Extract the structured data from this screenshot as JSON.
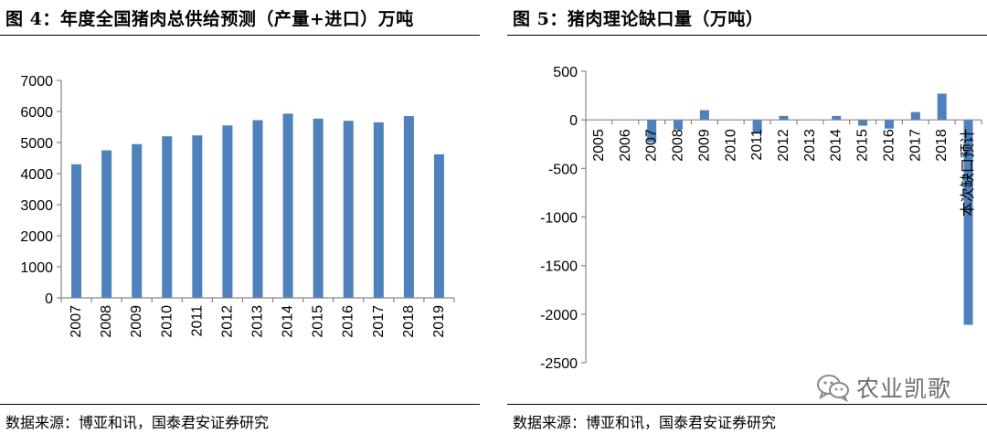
{
  "left_panel": {
    "title": "图 4：年度全国猪肉总供给预测（产量+进口）万吨",
    "source": "数据来源：博亚和讯，国泰君安证券研究"
  },
  "right_panel": {
    "title": "图 5：猪肉理论缺口量（万吨）",
    "source": "数据来源：博亚和讯，国泰君安证券研究"
  },
  "watermark": {
    "text": "农业凯歌",
    "icon": "wechat-icon"
  },
  "colors": {
    "bar": "#4f81bd",
    "axis": "#868686",
    "text": "#000000"
  },
  "chart_data": [
    {
      "type": "bar",
      "title": "图 4：年度全国猪肉总供给预测（产量+进口）万吨",
      "categories": [
        "2007",
        "2008",
        "2009",
        "2010",
        "2011",
        "2012",
        "2013",
        "2014",
        "2015",
        "2016",
        "2017",
        "2018",
        "2019"
      ],
      "values": [
        4300,
        4750,
        4950,
        5200,
        5230,
        5550,
        5720,
        5930,
        5770,
        5700,
        5650,
        5850,
        4620
      ],
      "ylim": [
        0,
        7000
      ],
      "yticks": [
        0,
        1000,
        2000,
        3000,
        4000,
        5000,
        6000,
        7000
      ],
      "grid": false,
      "legend": "none",
      "tick_label_rotation": -90
    },
    {
      "type": "bar",
      "title": "图 5：猪肉理论缺口量（万吨）",
      "categories": [
        "2005",
        "2006",
        "2007",
        "2008",
        "2009",
        "2010",
        "2011",
        "2012",
        "2013",
        "2014",
        "2015",
        "2016",
        "2017",
        "2018",
        "本次缺口预计"
      ],
      "values": [
        0,
        0,
        -230,
        -100,
        100,
        0,
        -140,
        40,
        0,
        40,
        -60,
        -90,
        80,
        270,
        -2110
      ],
      "ylim": [
        -2500,
        500
      ],
      "yticks": [
        -2500,
        -2000,
        -1500,
        -1000,
        -500,
        0,
        500
      ],
      "grid": false,
      "legend": "none",
      "tick_label_rotation": -90,
      "category_labels_position": "at-zero-line"
    }
  ]
}
